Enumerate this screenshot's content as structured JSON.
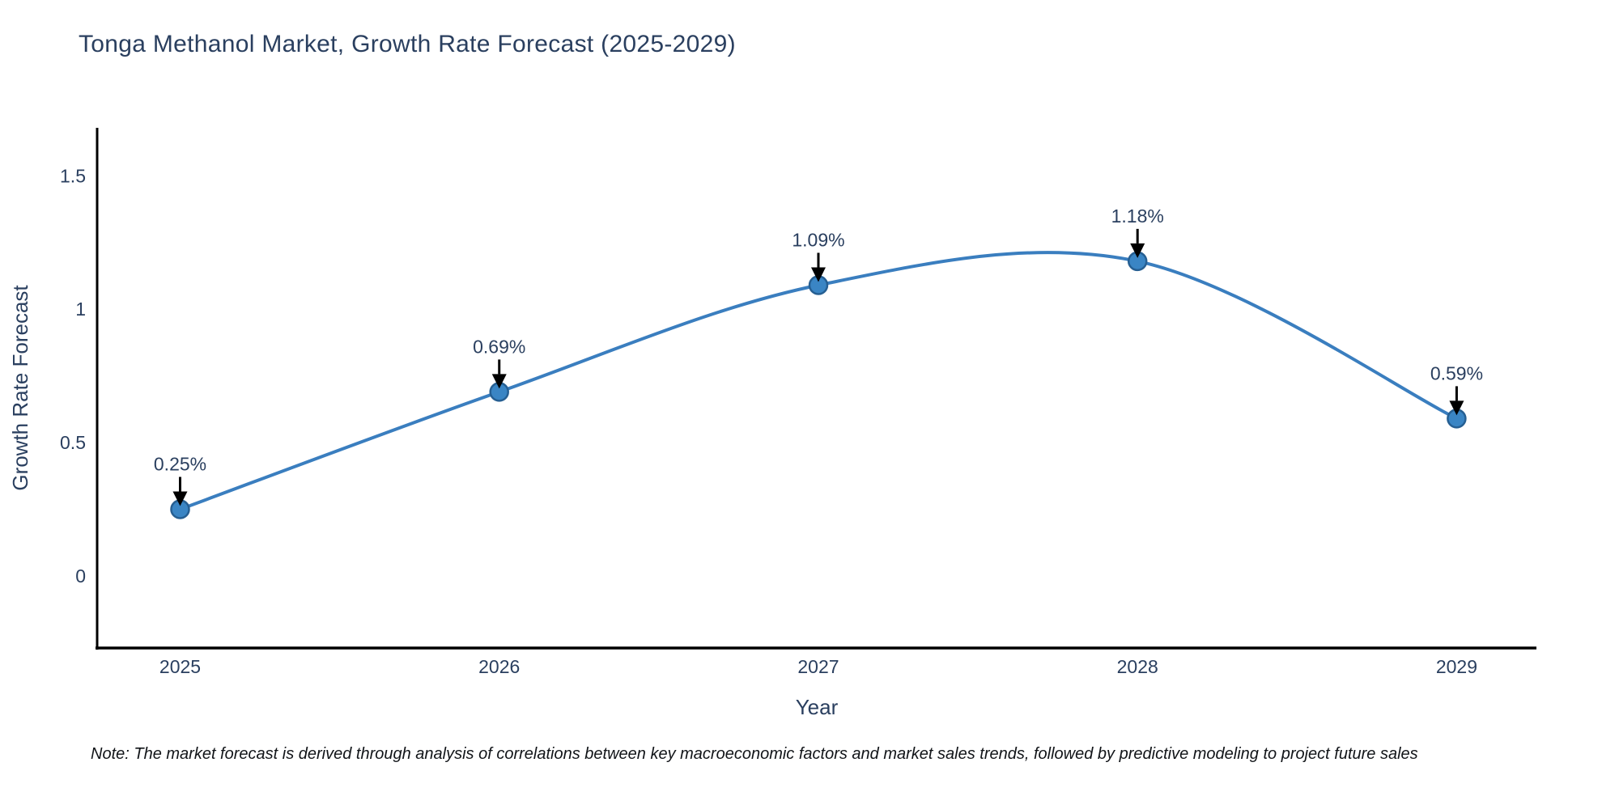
{
  "title": "Tonga Methanol Market, Growth Rate Forecast (2025-2029)",
  "note": "Note: The market forecast is derived through analysis of correlations between key macroeconomic factors and market sales trends, followed by predictive modeling to project future sales",
  "chart_data": {
    "type": "line",
    "title": "Tonga Methanol Market, Growth Rate Forecast (2025-2029)",
    "x": [
      2025,
      2026,
      2027,
      2028,
      2029
    ],
    "values": [
      0.25,
      0.69,
      1.09,
      1.18,
      0.59
    ],
    "series": [
      {
        "name": "Growth Rate Forecast",
        "values": [
          0.25,
          0.69,
          1.09,
          1.18,
          0.59
        ]
      }
    ],
    "point_labels": [
      "0.25%",
      "0.69%",
      "1.09%",
      "1.18%",
      "0.59%"
    ],
    "xtick_labels": [
      "2025",
      "2026",
      "2027",
      "2028",
      "2029"
    ],
    "ytick_values": [
      0,
      0.5,
      1,
      1.5
    ],
    "ytick_labels": [
      "0",
      "0.5",
      "1",
      "1.5"
    ],
    "xlabel": "Year",
    "ylabel": "Growth Rate Forecast",
    "xlim": [
      2024.74,
      2029.25
    ],
    "ylim": [
      -0.27,
      1.68
    ],
    "line_shape": "spline",
    "grid": false,
    "legend": "none",
    "marker_size_px": 11,
    "colors": {
      "line": "#3a7ebf",
      "marker_fill": "#3a85c4",
      "marker_edge": "#265f92",
      "annotation_arrow": "#000000",
      "text": "#2a3f5f",
      "axis_line": "#000000",
      "background": "#ffffff"
    }
  }
}
